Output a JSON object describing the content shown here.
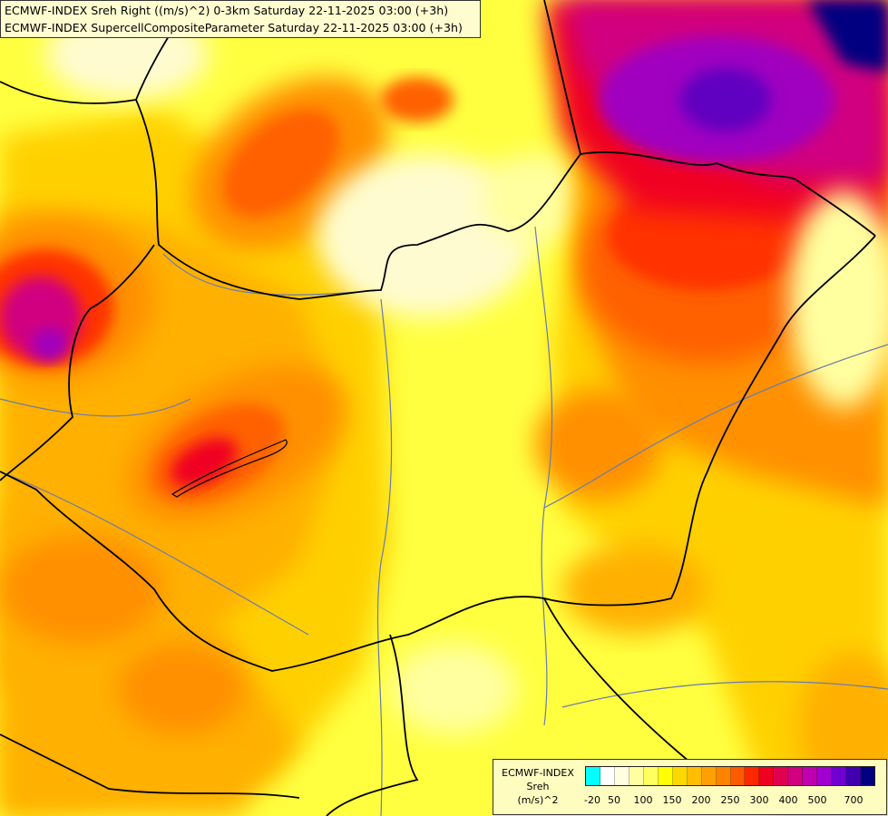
{
  "title": {
    "line1": "ECMWF-INDEX Sreh Right ((m/s)^2) 0-3km Saturday 22-11-2025 03:00 (+3h)",
    "line2": "ECMWF-INDEX SupercellCompositeParameter Saturday 22-11-2025 03:00 (+3h)"
  },
  "legend": {
    "line1": "ECMWF-INDEX",
    "line2": "Sreh",
    "line3": "(m/s)^2",
    "colors": [
      "#00ffff",
      "#ffffff",
      "#ffffe0",
      "#ffffa0",
      "#ffff60",
      "#ffff00",
      "#ffd700",
      "#ffbe00",
      "#ffa000",
      "#ff8200",
      "#ff5a00",
      "#ff2800",
      "#f00020",
      "#e00050",
      "#d00080",
      "#c000b0",
      "#a000d0",
      "#7000d0",
      "#4000b0",
      "#000080"
    ],
    "ticks": [
      "-20",
      "50",
      "100",
      "150",
      "200",
      "250",
      "300",
      "400",
      "500",
      "700"
    ]
  },
  "map": {
    "base_color": "#ffff40",
    "field_colors": {
      "pale": "#fffbd0",
      "light_yellow": "#ffffa0",
      "yellow": "#ffff00",
      "gold": "#ffd000",
      "amber": "#ffb000",
      "orange": "#ff9000",
      "dark_orange": "#ff6000",
      "red_orange": "#ff3000",
      "red": "#f00020",
      "magenta": "#d00080",
      "purple": "#a000c0",
      "violet": "#6000c0",
      "navy": "#000080"
    },
    "border_color": "#000000",
    "river_color": "#6a7ab0"
  }
}
